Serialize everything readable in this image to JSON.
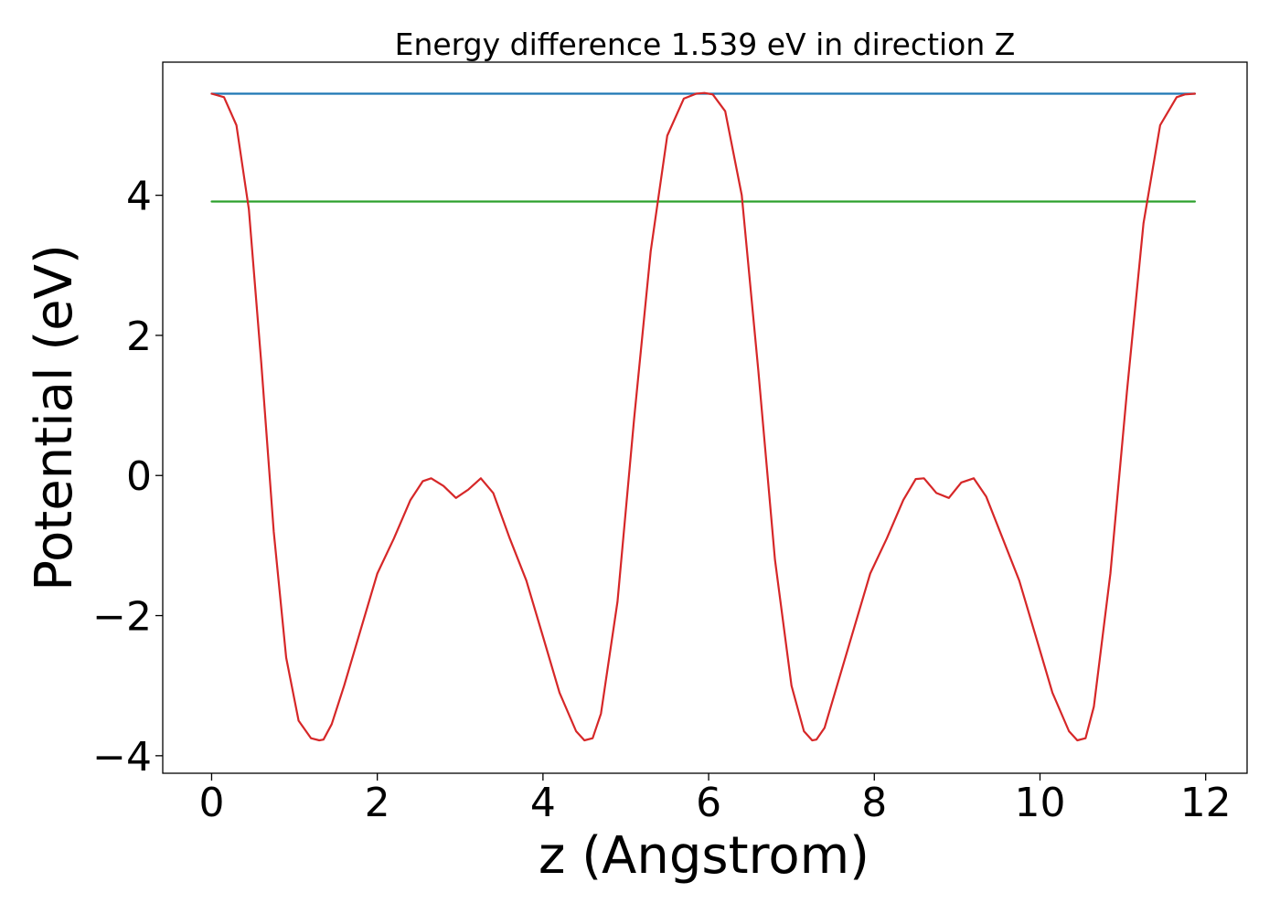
{
  "chart_data": {
    "type": "line",
    "title": "Energy difference 1.539 eV in direction Z",
    "xlabel": "z (Angstrom)",
    "ylabel": "Potential (eV)",
    "xlim": [
      -0.59,
      12.5
    ],
    "ylim": [
      -4.25,
      5.9
    ],
    "xticks": [
      0,
      2,
      4,
      6,
      8,
      10,
      12
    ],
    "yticks": [
      -4,
      -2,
      0,
      2,
      4
    ],
    "xtick_labels": [
      "0",
      "2",
      "4",
      "6",
      "8",
      "10",
      "12"
    ],
    "ytick_labels": [
      "−4",
      "−2",
      "0",
      "2",
      "4"
    ],
    "grid": false,
    "legend": "none",
    "series": [
      {
        "color": "#1f77b4",
        "x": [
          0,
          11.87
        ],
        "y": [
          5.45,
          5.45
        ]
      },
      {
        "color": "#2ca02c",
        "x": [
          0,
          11.87
        ],
        "y": [
          3.91,
          3.91
        ]
      },
      {
        "color": "#d62728",
        "x": [
          0,
          0.15,
          0.3,
          0.45,
          0.6,
          0.75,
          0.9,
          1.05,
          1.2,
          1.3,
          1.35,
          1.45,
          1.6,
          1.8,
          2.0,
          2.2,
          2.4,
          2.55,
          2.65,
          2.8,
          2.95,
          3.1,
          3.25,
          3.4,
          3.6,
          3.8,
          4.0,
          4.2,
          4.4,
          4.5,
          4.6,
          4.7,
          4.9,
          5.1,
          5.3,
          5.5,
          5.7,
          5.85,
          5.95,
          6.05,
          6.2,
          6.4,
          6.6,
          6.8,
          7.0,
          7.15,
          7.25,
          7.3,
          7.4,
          7.55,
          7.75,
          7.95,
          8.15,
          8.35,
          8.5,
          8.6,
          8.75,
          8.9,
          9.05,
          9.2,
          9.35,
          9.55,
          9.75,
          9.95,
          10.15,
          10.35,
          10.45,
          10.55,
          10.65,
          10.85,
          11.05,
          11.25,
          11.45,
          11.65,
          11.75,
          11.87
        ],
        "y": [
          5.45,
          5.4,
          5.0,
          3.8,
          1.6,
          -0.8,
          -2.6,
          -3.5,
          -3.75,
          -3.78,
          -3.77,
          -3.55,
          -3.0,
          -2.2,
          -1.4,
          -0.9,
          -0.35,
          -0.08,
          -0.04,
          -0.15,
          -0.32,
          -0.2,
          -0.04,
          -0.25,
          -0.9,
          -1.5,
          -2.3,
          -3.1,
          -3.65,
          -3.78,
          -3.75,
          -3.4,
          -1.8,
          0.8,
          3.2,
          4.85,
          5.38,
          5.45,
          5.46,
          5.44,
          5.2,
          4.0,
          1.5,
          -1.2,
          -3.0,
          -3.65,
          -3.78,
          -3.77,
          -3.6,
          -3.0,
          -2.2,
          -1.4,
          -0.9,
          -0.35,
          -0.05,
          -0.04,
          -0.25,
          -0.32,
          -0.1,
          -0.04,
          -0.3,
          -0.9,
          -1.5,
          -2.3,
          -3.1,
          -3.65,
          -3.78,
          -3.75,
          -3.3,
          -1.4,
          1.2,
          3.6,
          5.0,
          5.4,
          5.44,
          5.45
        ]
      }
    ]
  }
}
